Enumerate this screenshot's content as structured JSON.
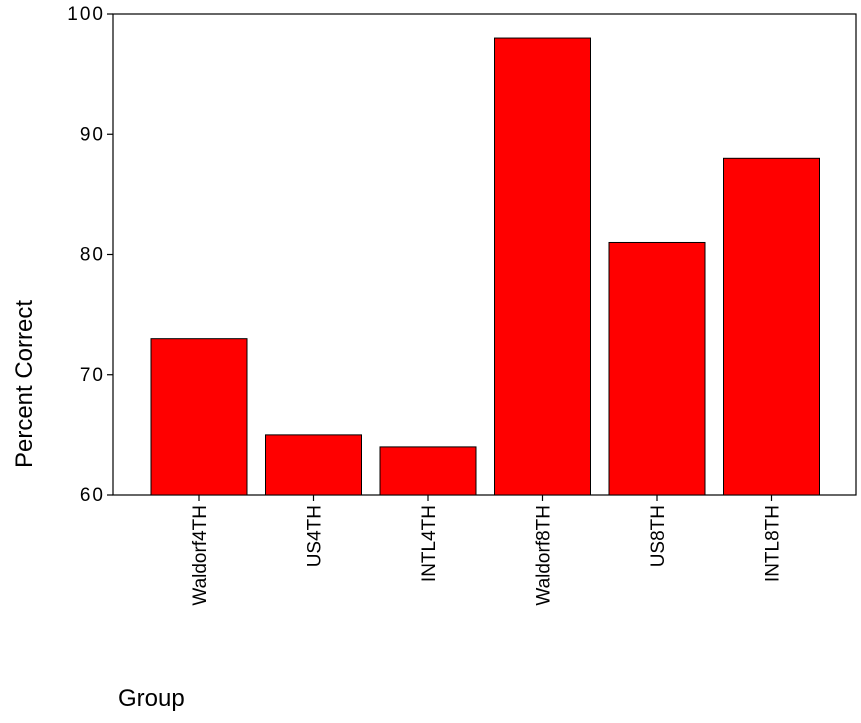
{
  "chart_data": {
    "type": "bar",
    "categories": [
      "Waldorf4TH",
      "US4TH",
      "INTL4TH",
      "Waldorf8TH",
      "US8TH",
      "INTL8TH"
    ],
    "values": [
      73,
      65,
      64,
      98,
      81,
      88
    ],
    "xlabel": "Group",
    "ylabel": "Percent Correct",
    "ylim": [
      60,
      100
    ],
    "yticks": [
      60,
      70,
      80,
      90,
      100
    ],
    "grid": false,
    "legend": "none",
    "bar_color": "#ff0000",
    "bar_edge_color": "#000000"
  }
}
